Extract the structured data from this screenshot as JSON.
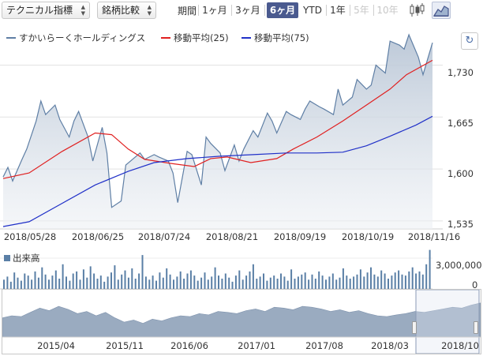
{
  "toolbar": {
    "technical_select": "テクニカル指標",
    "compare_select": "銘柄比較",
    "period_label": "期間",
    "periods": [
      "1ヶ月",
      "3ヶ月",
      "6ヶ月",
      "YTD",
      "1年",
      "5年",
      "10年"
    ],
    "active_period": "6ヶ月",
    "disabled_periods": [
      "5年",
      "10年"
    ],
    "chart_type_icons": [
      "candlestick-icon",
      "area-chart-icon"
    ],
    "active_chart_type": "area-chart-icon"
  },
  "legend": {
    "price": "すかいらーくホールディングス",
    "ma25": "移動平均(25)",
    "ma75": "移動平均(75)"
  },
  "colors": {
    "price_line": "#5f7fa5",
    "ma25": "#e02020",
    "ma75": "#2030c8",
    "volume": "#5a7fa6",
    "active_period_bg": "#4a5a8f",
    "navigator_fill": "#9aabc0"
  },
  "reload_icon": "reload-icon",
  "chart_data": [
    {
      "type": "area",
      "y_ticks": [
        "1,730",
        "1,665",
        "1,600",
        "1,535"
      ],
      "ylim": [
        1525,
        1770
      ],
      "x_ticks": [
        "2018/05/28",
        "2018/06/25",
        "2018/07/24",
        "2018/08/21",
        "2018/09/19",
        "2018/10/19",
        "2018/11/16"
      ],
      "x_range": [
        "2018/05/21",
        "2018/11/19"
      ],
      "grid": true,
      "series": [
        {
          "name": "すかいらーくホールディングス",
          "x": [
            "2018/05/21",
            "2018/05/23",
            "2018/05/25",
            "2018/05/29",
            "2018/05/31",
            "2018/06/04",
            "2018/06/06",
            "2018/06/08",
            "2018/06/12",
            "2018/06/14",
            "2018/06/18",
            "2018/06/20",
            "2018/06/22",
            "2018/06/26",
            "2018/06/28",
            "2018/07/02",
            "2018/07/04",
            "2018/07/06",
            "2018/07/10",
            "2018/07/12",
            "2018/07/16",
            "2018/07/18",
            "2018/07/20",
            "2018/07/24",
            "2018/07/26",
            "2018/07/30",
            "2018/08/01",
            "2018/08/03",
            "2018/08/07",
            "2018/08/09",
            "2018/08/13",
            "2018/08/15",
            "2018/08/17",
            "2018/08/21",
            "2018/08/23",
            "2018/08/27",
            "2018/08/29",
            "2018/08/31",
            "2018/09/04",
            "2018/09/06",
            "2018/09/10",
            "2018/09/12",
            "2018/09/14",
            "2018/09/18",
            "2018/09/20",
            "2018/09/24",
            "2018/09/26",
            "2018/09/28",
            "2018/10/02",
            "2018/10/04",
            "2018/10/08",
            "2018/10/10",
            "2018/10/12",
            "2018/10/16",
            "2018/10/18",
            "2018/10/22",
            "2018/10/24",
            "2018/10/26",
            "2018/10/30",
            "2018/11/01",
            "2018/11/05",
            "2018/11/07",
            "2018/11/09",
            "2018/11/13",
            "2018/11/15",
            "2018/11/19"
          ],
          "values": [
            1590,
            1602,
            1585,
            1612,
            1625,
            1660,
            1685,
            1668,
            1680,
            1662,
            1640,
            1660,
            1672,
            1640,
            1610,
            1652,
            1620,
            1552,
            1560,
            1605,
            1615,
            1620,
            1612,
            1618,
            1615,
            1610,
            1595,
            1558,
            1622,
            1618,
            1580,
            1640,
            1632,
            1620,
            1598,
            1630,
            1610,
            1625,
            1648,
            1640,
            1670,
            1660,
            1645,
            1672,
            1668,
            1662,
            1675,
            1685,
            1678,
            1675,
            1668,
            1700,
            1680,
            1690,
            1712,
            1700,
            1705,
            1730,
            1720,
            1760,
            1755,
            1750,
            1768,
            1740,
            1718,
            1758
          ]
        },
        {
          "name": "移動平均(25)",
          "x": [
            "2018/05/21",
            "2018/06/01",
            "2018/06/15",
            "2018/06/29",
            "2018/07/06",
            "2018/07/13",
            "2018/07/20",
            "2018/07/31",
            "2018/08/10",
            "2018/08/17",
            "2018/08/24",
            "2018/09/03",
            "2018/09/14",
            "2018/09/21",
            "2018/10/01",
            "2018/10/12",
            "2018/10/22",
            "2018/11/01",
            "2018/11/08",
            "2018/11/19"
          ],
          "values": [
            1588,
            1595,
            1622,
            1645,
            1643,
            1625,
            1612,
            1607,
            1603,
            1613,
            1615,
            1608,
            1613,
            1625,
            1640,
            1660,
            1680,
            1700,
            1718,
            1736
          ]
        },
        {
          "name": "移動平均(75)",
          "x": [
            "2018/05/21",
            "2018/06/01",
            "2018/06/15",
            "2018/06/29",
            "2018/07/13",
            "2018/07/24",
            "2018/08/07",
            "2018/08/21",
            "2018/09/04",
            "2018/09/18",
            "2018/10/01",
            "2018/10/12",
            "2018/10/22",
            "2018/11/01",
            "2018/11/12",
            "2018/11/19"
          ],
          "values": [
            1528,
            1534,
            1557,
            1580,
            1597,
            1608,
            1613,
            1616,
            1618,
            1620,
            1620,
            1621,
            1629,
            1641,
            1655,
            1666
          ]
        }
      ]
    },
    {
      "type": "bar",
      "title": "出来高",
      "y_ticks": [
        "3,000,000",
        "0"
      ],
      "ylim": [
        0,
        4000000
      ],
      "series": [
        {
          "name": "出来高",
          "values": [
            900000,
            1200000,
            700000,
            1600000,
            1100000,
            800000,
            1500000,
            1300000,
            900000,
            1700000,
            1100000,
            2100000,
            1400000,
            900000,
            1300000,
            1800000,
            1000000,
            2400000,
            1200000,
            800000,
            1500000,
            1700000,
            900000,
            1900000,
            1100000,
            2200000,
            1500000,
            1000000,
            1300000,
            700000,
            1200000,
            1600000,
            2300000,
            900000,
            1400000,
            1800000,
            1100000,
            2000000,
            1000000,
            1500000,
            3300000,
            1200000,
            900000,
            1300000,
            800000,
            1600000,
            1100000,
            2000000,
            1400000,
            900000,
            1200000,
            1700000,
            1000000,
            1500000,
            1800000,
            1300000,
            800000,
            1100000,
            1600000,
            900000,
            1200000,
            2100000,
            1300000,
            1000000,
            1500000,
            1100000,
            700000,
            1300000,
            1800000,
            900000,
            1300000,
            1700000,
            2400000,
            1000000,
            1200000,
            1500000,
            800000,
            1100000,
            1300000,
            1000000,
            1500000,
            1200000,
            800000,
            1900000,
            1000000,
            1200000,
            1400000,
            1600000,
            900000,
            1400000,
            1000000,
            1700000,
            1300000,
            900000,
            1200000,
            1500000,
            900000,
            1100000,
            2000000,
            1300000,
            1000000,
            1200000,
            1400000,
            1900000,
            1200000,
            1600000,
            2100000,
            1400000,
            1200000,
            1800000,
            1500000,
            1000000,
            1300000,
            1600000,
            1800000,
            1400000,
            1300000,
            1700000,
            2100000,
            1500000,
            1700000,
            1400000,
            2400000,
            3800000
          ]
        }
      ]
    },
    {
      "type": "area",
      "x_ticks": [
        "2015/04",
        "2015/11",
        "2016/06",
        "2017/01",
        "2017/08",
        "2018/03",
        "2018/10"
      ],
      "series": [
        {
          "name": "navigator",
          "values": [
            0.45,
            0.5,
            0.48,
            0.58,
            0.68,
            0.62,
            0.72,
            0.65,
            0.55,
            0.6,
            0.5,
            0.58,
            0.45,
            0.35,
            0.4,
            0.32,
            0.42,
            0.38,
            0.45,
            0.5,
            0.48,
            0.55,
            0.52,
            0.6,
            0.58,
            0.55,
            0.62,
            0.66,
            0.6,
            0.7,
            0.68,
            0.64,
            0.72,
            0.7,
            0.66,
            0.6,
            0.64,
            0.58,
            0.62,
            0.55,
            0.5,
            0.48,
            0.52,
            0.55,
            0.6,
            0.58,
            0.62,
            0.66,
            0.7,
            0.68,
            0.75,
            0.8
          ]
        }
      ]
    }
  ]
}
